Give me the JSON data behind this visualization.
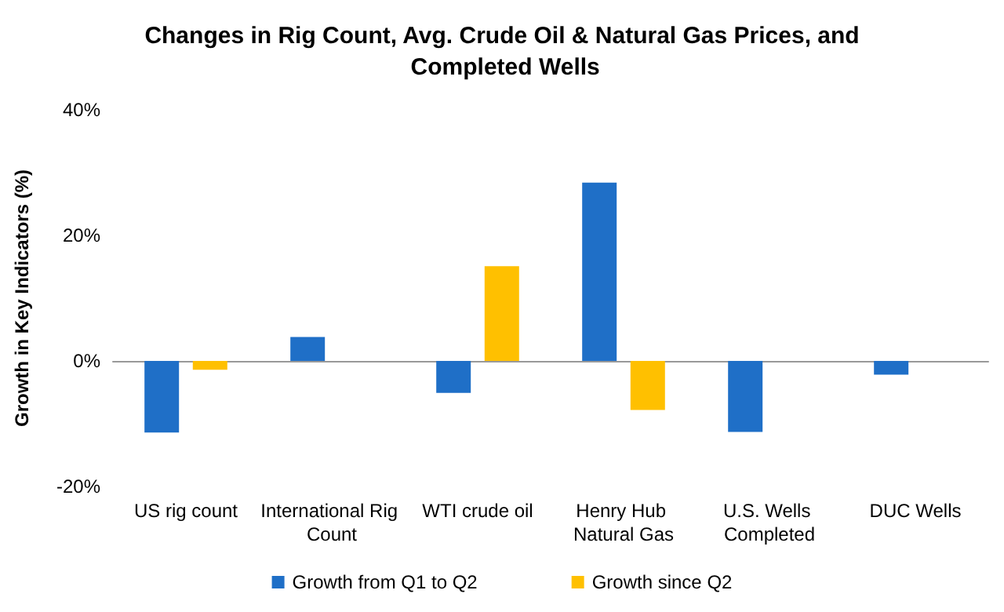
{
  "chart_data": {
    "type": "bar",
    "title": "Changes in Rig Count, Avg. Crude Oil & Natural Gas Prices, and Completed Wells",
    "ylabel": "Growth in Key Indicators (%)",
    "categories": [
      "US rig count",
      "International Rig Count",
      "WTI crude oil",
      "Henry Hub Natural Gas",
      "U.S. Wells Completed",
      "DUC Wells"
    ],
    "series": [
      {
        "name": "Growth from Q1 to Q2",
        "color": "#1f6fc7",
        "values": [
          -11.4,
          3.8,
          -5.1,
          28.4,
          -11.3,
          -2.2
        ]
      },
      {
        "name": "Growth since Q2",
        "color": "#ffc000",
        "values": [
          -1.4,
          null,
          15.1,
          -7.8,
          null,
          null
        ]
      }
    ],
    "ylim": [
      -20,
      40
    ],
    "yticks": [
      {
        "value": -20,
        "label": "-20%"
      },
      {
        "value": 0,
        "label": "0%"
      },
      {
        "value": 20,
        "label": "20%"
      },
      {
        "value": 40,
        "label": "40%"
      }
    ],
    "legend": "bottom"
  }
}
